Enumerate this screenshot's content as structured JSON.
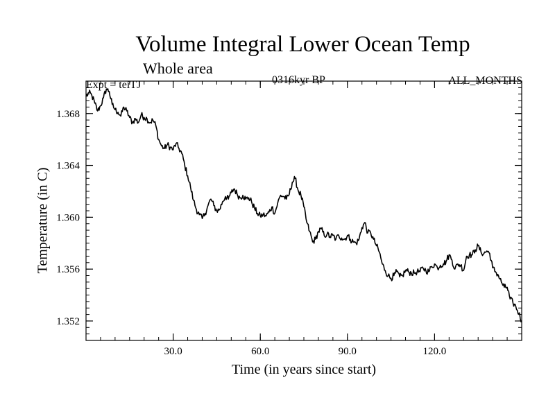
{
  "chart_data": {
    "type": "line",
    "title": "Volume Integral Lower Ocean Temp",
    "subtitle": "Whole area",
    "left_label": "Expt = teiTJ",
    "center_label": "0316kyr BP",
    "right_label": "ALL_MONTHS",
    "xlabel": "Time (in years since start)",
    "ylabel": "Temperature (in C)",
    "xlim": [
      0,
      150
    ],
    "ylim": [
      1.3505,
      1.3705
    ],
    "xticks": [
      30,
      60,
      90,
      120
    ],
    "xtick_labels": [
      "30.0",
      "60.0",
      "90.0",
      "120.0"
    ],
    "xminor_step": 5,
    "yticks": [
      1.352,
      1.356,
      1.36,
      1.364,
      1.368
    ],
    "ytick_labels": [
      "1.352",
      "1.356",
      "1.360",
      "1.364",
      "1.368"
    ],
    "yminor_step": 0.0005,
    "series": [
      {
        "name": "teiTJ",
        "color": "#000000",
        "x": [
          0,
          1,
          2,
          3,
          4,
          5,
          6,
          7,
          8,
          9,
          10,
          11,
          12,
          13,
          14,
          15,
          16,
          17,
          18,
          19,
          20,
          21,
          22,
          23,
          24,
          25,
          26,
          27,
          28,
          29,
          30,
          31,
          32,
          33,
          34,
          35,
          36,
          37,
          38,
          39,
          40,
          41,
          42,
          43,
          44,
          45,
          46,
          47,
          48,
          49,
          50,
          51,
          52,
          53,
          54,
          55,
          56,
          57,
          58,
          59,
          60,
          61,
          62,
          63,
          64,
          65,
          66,
          67,
          68,
          69,
          70,
          71,
          72,
          73,
          74,
          75,
          76,
          77,
          78,
          79,
          80,
          81,
          82,
          83,
          84,
          85,
          86,
          87,
          88,
          89,
          90,
          91,
          92,
          93,
          94,
          95,
          96,
          97,
          98,
          99,
          100,
          101,
          102,
          103,
          104,
          105,
          106,
          107,
          108,
          109,
          110,
          111,
          112,
          113,
          114,
          115,
          116,
          117,
          118,
          119,
          120,
          121,
          122,
          123,
          124,
          125,
          126,
          127,
          128,
          129,
          130,
          131,
          132,
          133,
          134,
          135,
          136,
          137,
          138,
          139,
          140,
          141,
          142,
          143,
          144,
          145,
          146,
          147,
          148,
          149,
          150
        ],
        "y": [
          1.3693,
          1.3696,
          1.3694,
          1.3688,
          1.3682,
          1.3686,
          1.3692,
          1.3699,
          1.3697,
          1.3687,
          1.3683,
          1.3681,
          1.3678,
          1.3685,
          1.3682,
          1.3677,
          1.3673,
          1.3676,
          1.3673,
          1.3679,
          1.3677,
          1.3676,
          1.3673,
          1.3675,
          1.3671,
          1.366,
          1.3655,
          1.3653,
          1.3656,
          1.3654,
          1.3652,
          1.3657,
          1.3653,
          1.3649,
          1.364,
          1.3632,
          1.3623,
          1.3613,
          1.3606,
          1.3602,
          1.3599,
          1.3603,
          1.3609,
          1.3614,
          1.3609,
          1.3605,
          1.3606,
          1.3612,
          1.3616,
          1.3614,
          1.3619,
          1.3622,
          1.3618,
          1.3615,
          1.3617,
          1.3614,
          1.3615,
          1.3612,
          1.3607,
          1.3603,
          1.3601,
          1.3602,
          1.3601,
          1.3604,
          1.3608,
          1.3603,
          1.3611,
          1.3617,
          1.3616,
          1.3614,
          1.3618,
          1.3627,
          1.363,
          1.3621,
          1.3617,
          1.3608,
          1.3596,
          1.3589,
          1.3581,
          1.3583,
          1.3589,
          1.3591,
          1.3586,
          1.3587,
          1.3585,
          1.3586,
          1.3583,
          1.3586,
          1.3584,
          1.3583,
          1.3586,
          1.3583,
          1.3581,
          1.358,
          1.3583,
          1.3592,
          1.3596,
          1.3588,
          1.3588,
          1.3583,
          1.3578,
          1.3573,
          1.3564,
          1.3559,
          1.3555,
          1.3553,
          1.3555,
          1.3558,
          1.3554,
          1.3555,
          1.3559,
          1.3558,
          1.3557,
          1.3557,
          1.3558,
          1.3558,
          1.3561,
          1.3559,
          1.3558,
          1.3562,
          1.3564,
          1.3561,
          1.3563,
          1.3564,
          1.3566,
          1.3571,
          1.3567,
          1.356,
          1.3564,
          1.3563,
          1.3559,
          1.357,
          1.3571,
          1.3571,
          1.3575,
          1.3578,
          1.3573,
          1.3572,
          1.3574,
          1.3572,
          1.3561,
          1.3558,
          1.3555,
          1.355,
          1.3546,
          1.3546,
          1.3537,
          1.3534,
          1.3531,
          1.3526,
          1.352
        ]
      }
    ]
  }
}
